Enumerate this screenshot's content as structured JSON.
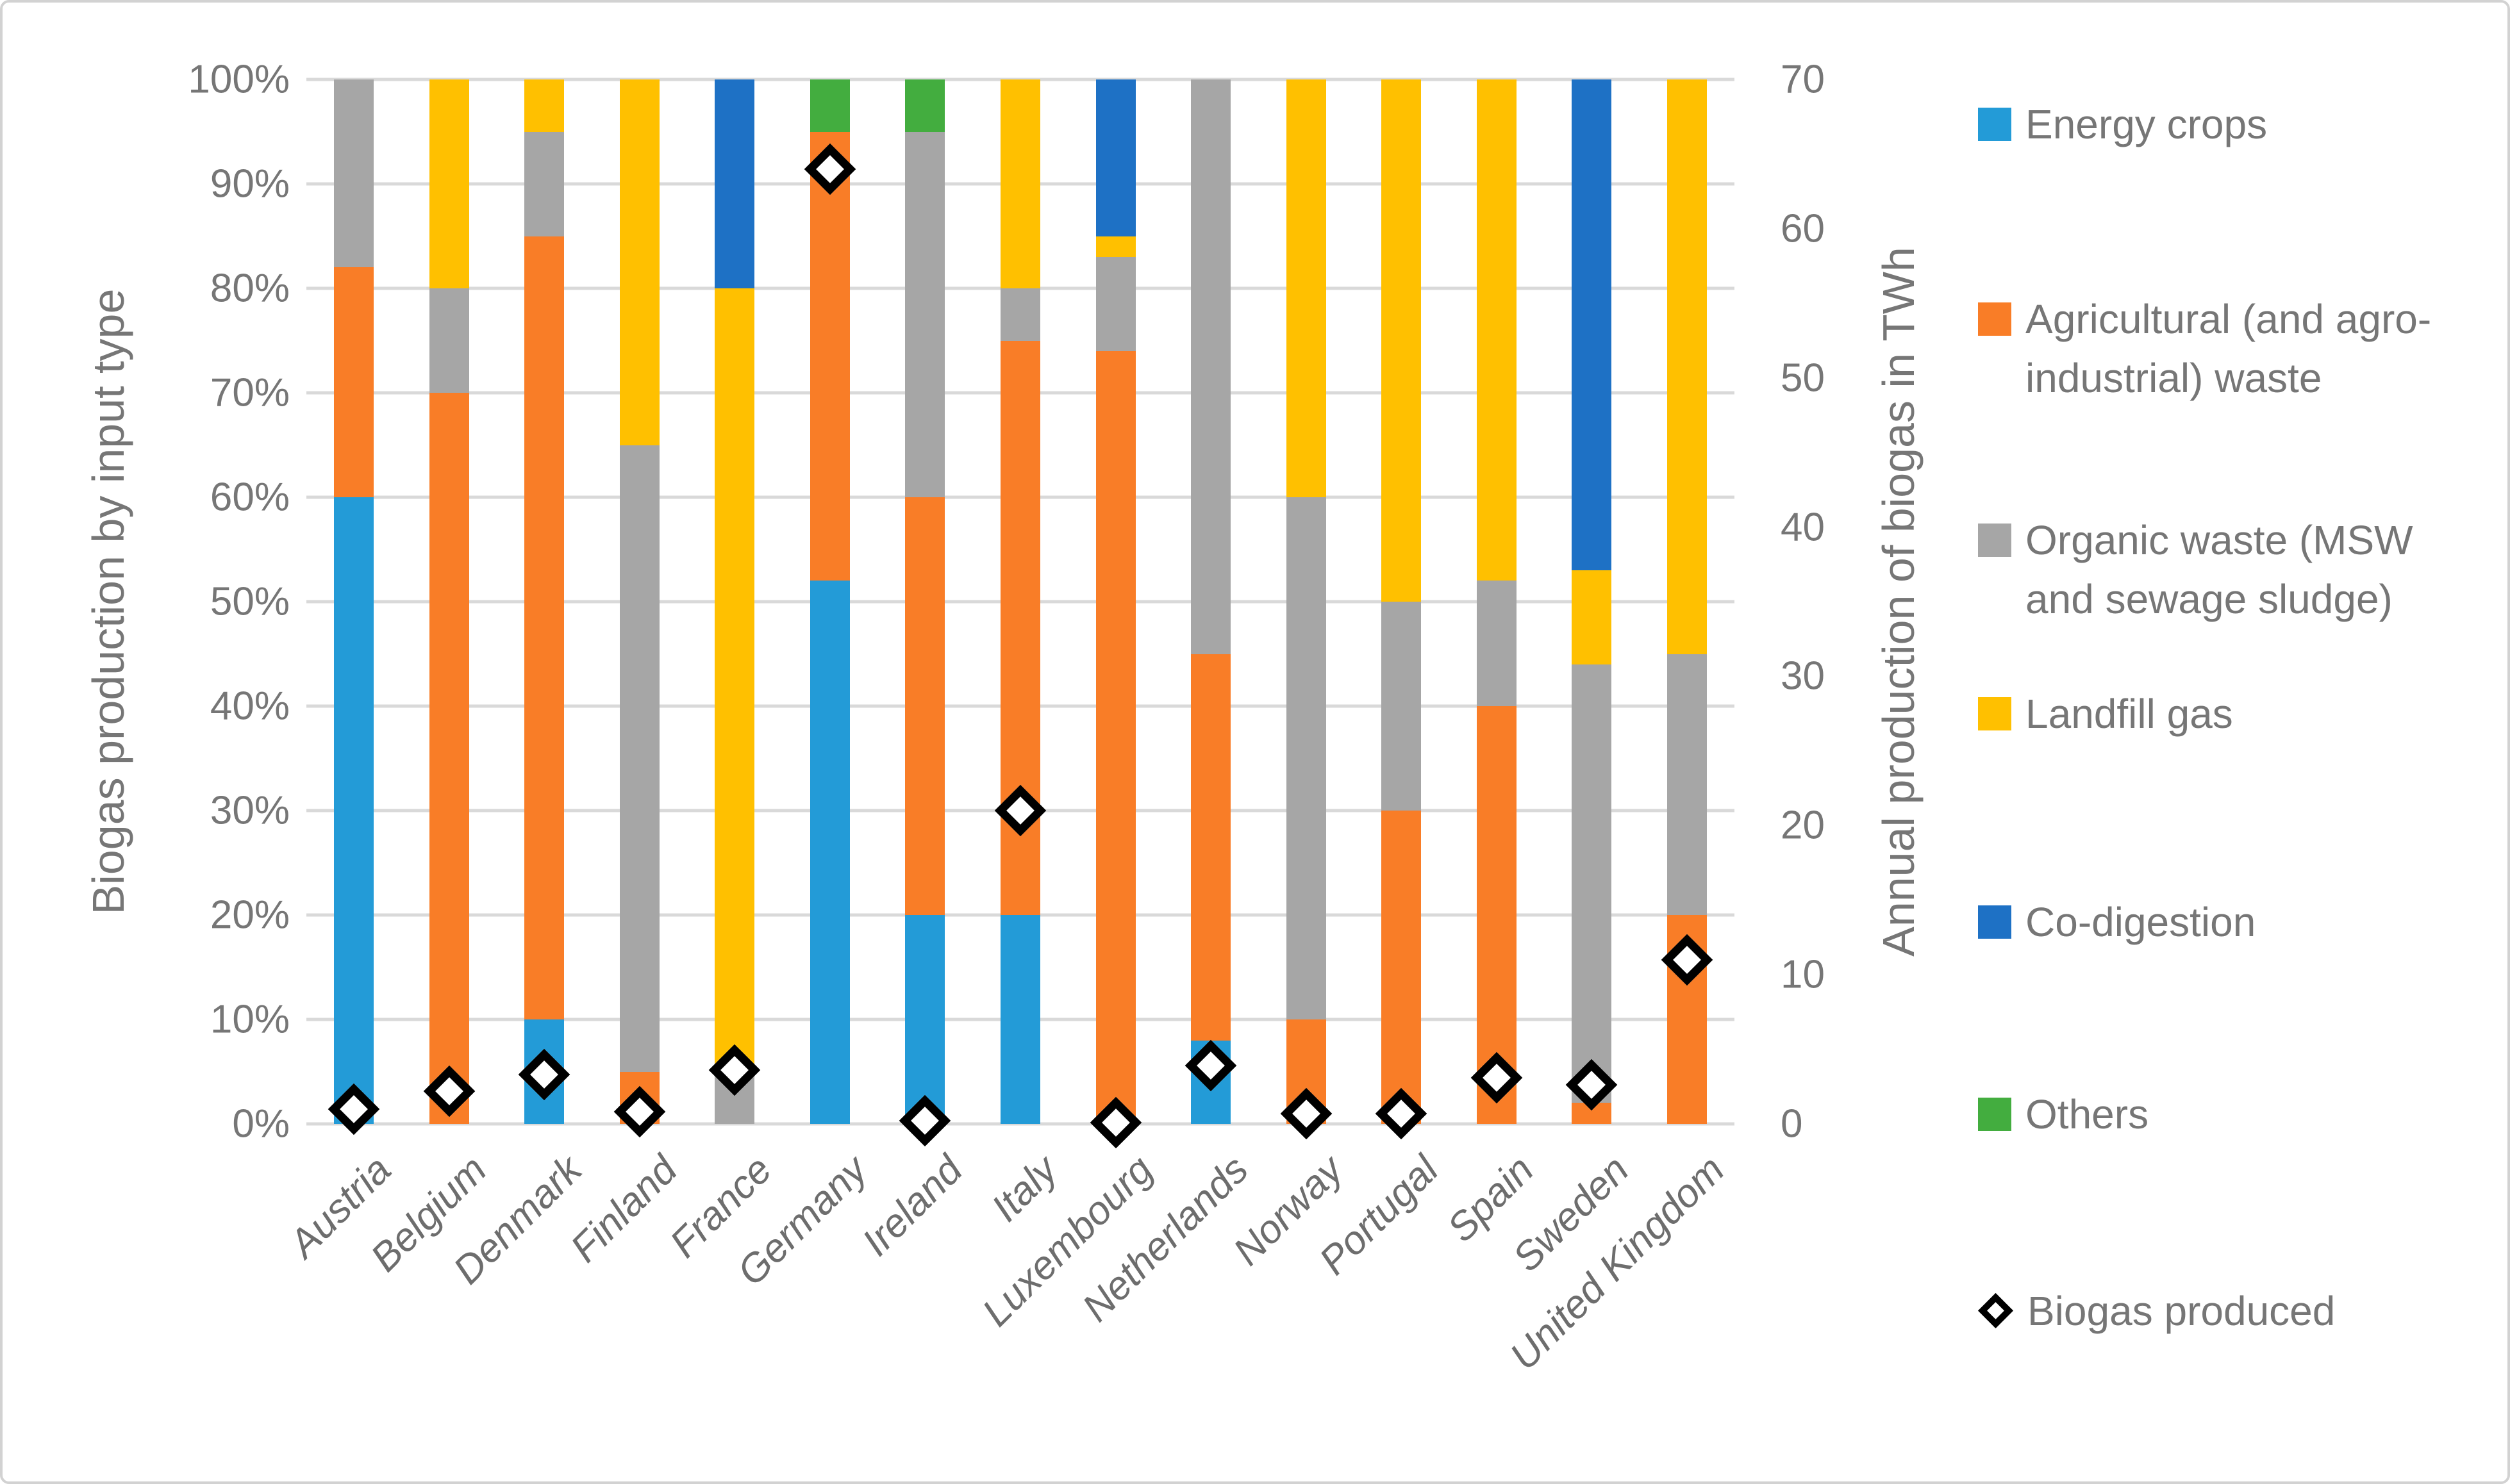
{
  "chart_data": {
    "type": "bar",
    "subtype": "stacked-100-with-scatter-markers",
    "categories": [
      "Austria",
      "Belgium",
      "Denmark",
      "Finland",
      "France",
      "Germany",
      "Ireland",
      "Italy",
      "Luxembourg",
      "Netherlands",
      "Norway",
      "Portugal",
      "Spain",
      "Sweden",
      "United Kingdom"
    ],
    "series": [
      {
        "name": "Energy crops",
        "color": "#239BD7",
        "values": [
          60,
          0,
          10,
          0,
          0,
          52,
          20,
          20,
          0,
          8,
          0,
          0,
          0,
          0,
          0
        ]
      },
      {
        "name": "Agricultural (and agro-industrial) waste",
        "color": "#F97D27",
        "values": [
          22,
          70,
          75,
          5,
          0,
          43,
          40,
          55,
          74,
          37,
          10,
          30,
          40,
          2,
          20
        ]
      },
      {
        "name": "Organic waste (MSW and sewage sludge)",
        "color": "#A6A6A6",
        "values": [
          18,
          10,
          10,
          60,
          5,
          0,
          35,
          5,
          9,
          55,
          50,
          20,
          12,
          42,
          25
        ]
      },
      {
        "name": "Landfill gas",
        "color": "#FFC000",
        "values": [
          0,
          20,
          5,
          35,
          75,
          0,
          0,
          20,
          2,
          0,
          40,
          50,
          48,
          9,
          55
        ]
      },
      {
        "name": "Co-digestion",
        "color": "#1E71C5",
        "values": [
          0,
          0,
          0,
          0,
          20,
          0,
          0,
          0,
          15,
          0,
          0,
          0,
          0,
          47,
          0
        ]
      },
      {
        "name": "Others",
        "color": "#43AD3F",
        "values": [
          0,
          0,
          0,
          0,
          0,
          5,
          5,
          0,
          0,
          0,
          0,
          0,
          0,
          0,
          0
        ]
      }
    ],
    "marker_series": {
      "name": "Biogas produced",
      "unit": "TWh",
      "marker": "diamond",
      "values": [
        1.0,
        2.2,
        3.3,
        0.8,
        3.6,
        64,
        0.2,
        21,
        0.1,
        3.9,
        0.7,
        0.7,
        3.1,
        2.6,
        11
      ]
    },
    "left_axis": {
      "title": "Biogas production by input type",
      "min": 0,
      "max": 100,
      "ticks": [
        "0%",
        "10%",
        "20%",
        "30%",
        "40%",
        "50%",
        "60%",
        "70%",
        "80%",
        "90%",
        "100%"
      ]
    },
    "right_axis": {
      "title": "Annual production of biogas in TWh",
      "min": 0,
      "max": 70,
      "ticks": [
        "0",
        "10",
        "20",
        "30",
        "40",
        "50",
        "60",
        "70"
      ]
    },
    "grid": "horizontal",
    "legend_position": "right"
  },
  "legend": {
    "items": [
      {
        "kind": "square",
        "series_index": 0,
        "lines": [
          "Energy crops"
        ]
      },
      {
        "kind": "square",
        "series_index": 1,
        "lines": [
          "Agricultural (and agro-",
          "industrial) waste"
        ]
      },
      {
        "kind": "square",
        "series_index": 2,
        "lines": [
          "Organic waste (MSW",
          "and sewage sludge)"
        ]
      },
      {
        "kind": "square",
        "series_index": 3,
        "lines": [
          "Landfill gas"
        ]
      },
      {
        "kind": "square",
        "series_index": 4,
        "lines": [
          "Co-digestion"
        ]
      },
      {
        "kind": "square",
        "series_index": 5,
        "lines": [
          "Others"
        ]
      },
      {
        "kind": "diamond",
        "series_index": -1,
        "lines": [
          "Biogas produced"
        ]
      }
    ]
  },
  "colors": {
    "grid": "#d9d9d9",
    "axis_text": "#767676",
    "marker_stroke": "#000000",
    "marker_fill": "#ffffff",
    "border": "#d2d2d2",
    "background": "#ffffff"
  }
}
